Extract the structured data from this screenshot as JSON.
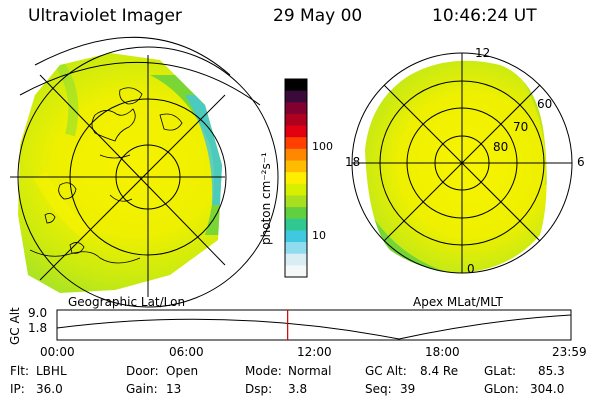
{
  "header": {
    "instrument": "Ultraviolet Imager",
    "date": "29 May 00",
    "time": "10:46:24 UT"
  },
  "geo_panel": {
    "caption": "Geographic Lat/Lon"
  },
  "colorbar": {
    "unit_label": "photon cm⁻²s⁻¹",
    "ticks": [
      "100",
      "10"
    ],
    "colors": [
      "#000000",
      "#3a0a3a",
      "#800030",
      "#b00020",
      "#e00010",
      "#ff4000",
      "#ff8800",
      "#ffbb00",
      "#ffee00",
      "#d8f000",
      "#a8e020",
      "#60d040",
      "#30c890",
      "#40c8e0",
      "#90dcee",
      "#d8eef4",
      "#f4f8f8"
    ]
  },
  "polar_panel": {
    "caption": "Apex MLat/MLT",
    "mlt_labels": {
      "top": "12",
      "left": "18",
      "right": "6",
      "bottom": "0"
    },
    "lat_labels": [
      "60",
      "70",
      "80"
    ]
  },
  "altitude_plot": {
    "ylabel": "GC Alt",
    "yticks": [
      "9.0",
      "1.8"
    ],
    "xticks": [
      "00:00",
      "06:00",
      "12:00",
      "18:00",
      "23:59"
    ],
    "current_time_marker_hours": 10.77,
    "marker_color": "#d00000"
  },
  "status": {
    "row1": [
      {
        "label": "Flt:",
        "value": "LBHL"
      },
      {
        "label": "Door:",
        "value": "Open"
      },
      {
        "label": "Mode:",
        "value": "Normal"
      },
      {
        "label": "GC Alt:",
        "value": "8.4 Re"
      },
      {
        "label": "GLat:",
        "value": "85.3"
      }
    ],
    "row2": [
      {
        "label": "IP:",
        "value": "36.0"
      },
      {
        "label": "Gain:",
        "value": "13"
      },
      {
        "label": "Dsp:",
        "value": "3.8"
      },
      {
        "label": "Seq:",
        "value": "39"
      },
      {
        "label": "GLon:",
        "value": "304.0"
      }
    ]
  }
}
